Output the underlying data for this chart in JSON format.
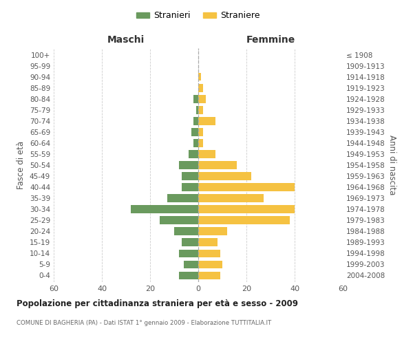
{
  "age_groups": [
    "0-4",
    "5-9",
    "10-14",
    "15-19",
    "20-24",
    "25-29",
    "30-34",
    "35-39",
    "40-44",
    "45-49",
    "50-54",
    "55-59",
    "60-64",
    "65-69",
    "70-74",
    "75-79",
    "80-84",
    "85-89",
    "90-94",
    "95-99",
    "100+"
  ],
  "birth_years": [
    "2004-2008",
    "1999-2003",
    "1994-1998",
    "1989-1993",
    "1984-1988",
    "1979-1983",
    "1974-1978",
    "1969-1973",
    "1964-1968",
    "1959-1963",
    "1954-1958",
    "1949-1953",
    "1944-1948",
    "1939-1943",
    "1934-1938",
    "1929-1933",
    "1924-1928",
    "1919-1923",
    "1914-1918",
    "1909-1913",
    "≤ 1908"
  ],
  "males": [
    8,
    6,
    8,
    7,
    10,
    16,
    28,
    13,
    7,
    7,
    8,
    4,
    2,
    3,
    2,
    1,
    2,
    0,
    0,
    0,
    0
  ],
  "females": [
    9,
    10,
    9,
    8,
    12,
    38,
    40,
    27,
    40,
    22,
    16,
    7,
    2,
    2,
    7,
    2,
    3,
    2,
    1,
    0,
    0
  ],
  "male_color": "#6a9a5e",
  "female_color": "#f5c242",
  "male_label": "Stranieri",
  "female_label": "Straniere",
  "title": "Popolazione per cittadinanza straniera per età e sesso - 2009",
  "subtitle": "COMUNE DI BAGHERIA (PA) - Dati ISTAT 1° gennaio 2009 - Elaborazione TUTTITALIA.IT",
  "xlabel_left": "Maschi",
  "xlabel_right": "Femmine",
  "ylabel_left": "Fasce di età",
  "ylabel_right": "Anni di nascita",
  "xlim": 60,
  "background_color": "#ffffff",
  "grid_color": "#cccccc"
}
